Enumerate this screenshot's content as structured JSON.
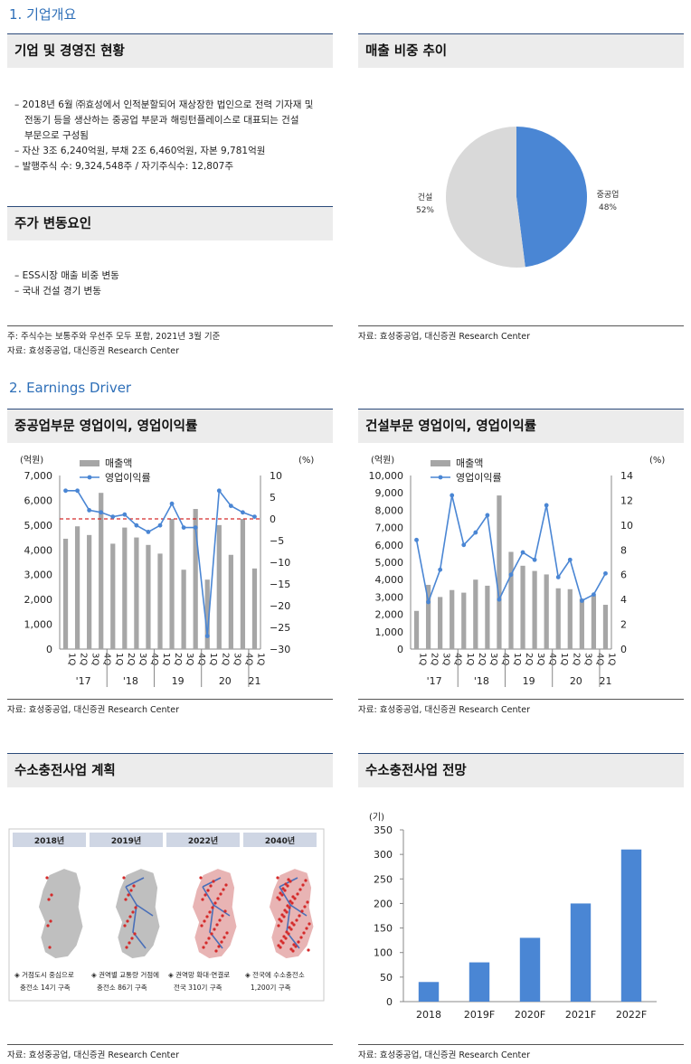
{
  "section1": {
    "title": "1. 기업개요"
  },
  "company": {
    "head": "기업 및 경영진 현황",
    "bullets": [
      "– 2018년 6월 ㈜효성에서 인적분할되어 재상장한 법인으로 전력 기자재 및",
      "전동기 등을 생산하는 중공업 부문과 해링턴플레이스로 대표되는 건설",
      "부문으로 구성됨",
      "– 자산 3조 6,240억원, 부채 2조 6,460억원, 자본 9,781억원",
      "– 발행주식 수: 9,324,548주 / 자기주식수: 12,807주"
    ]
  },
  "stock": {
    "head": "주가 변동요인",
    "bullets": [
      "– ESS시장 매출 비중 변동",
      "– 국내 건설 경기 변동"
    ],
    "note": "주: 주식수는 보통주와 우선주 모두 포함, 2021년 3월 기준",
    "source": "자료: 효성중공업, 대신증권 Research Center"
  },
  "pie": {
    "head": "매출 비중 추이",
    "source": "자료: 효성중공업, 대신증권 Research Center",
    "color_heavy": "#4a86d4",
    "color_const": "#d9d9d9"
  },
  "section2": {
    "title": "2. Earnings Driver"
  },
  "chart1": {
    "head": "중공업부문 영업이익, 영업이익률",
    "source": "자료: 효성중공업, 대신증권 Research Center",
    "unit_left": "(억원)",
    "unit_right": "(%)",
    "legend_bar": "매출액",
    "legend_line": "영업이익률",
    "left_ticks": [
      "7,000",
      "6,000",
      "5,000",
      "4,000",
      "3,000",
      "2,000",
      "1,000",
      "0"
    ],
    "right_ticks": [
      "10",
      "5",
      "0",
      "−5",
      "−10",
      "−15",
      "−20",
      "−25",
      "−30"
    ],
    "q_labels": [
      "1Q",
      "2Q",
      "3Q",
      "4Q",
      "1Q",
      "2Q",
      "3Q",
      "4Q",
      "1Q",
      "2Q",
      "3Q",
      "4Q",
      "1Q",
      "2Q",
      "3Q",
      "4Q",
      "1Q"
    ],
    "years": [
      "'17",
      "'18",
      "19",
      "20",
      "21"
    ]
  },
  "chart2": {
    "head": "건설부문 영업이익, 영업이익률",
    "source": "자료: 효성중공업, 대신증권 Research Center",
    "unit_left": "(억원)",
    "unit_right": "(%)",
    "legend_bar": "매출액",
    "legend_line": "영업이익률",
    "left_ticks": [
      "10,000",
      "9,000",
      "8,000",
      "7,000",
      "6,000",
      "5,000",
      "4,000",
      "3,000",
      "2,000",
      "1,000",
      "0"
    ],
    "right_ticks": [
      "14",
      "12",
      "10",
      "8",
      "6",
      "4",
      "2",
      "0"
    ],
    "q_labels": [
      "1Q",
      "2Q",
      "3Q",
      "4Q",
      "1Q",
      "2Q",
      "3Q",
      "4Q",
      "1Q",
      "2Q",
      "3Q",
      "4Q",
      "1Q",
      "2Q",
      "3Q",
      "4Q",
      "1Q"
    ],
    "years": [
      "'17",
      "'18",
      "19",
      "20",
      "21"
    ]
  },
  "hydrogen_plan": {
    "head": "수소충전사업 계획",
    "source": "자료: 효성중공업, 대신증권 Research Center",
    "years": [
      "2018년",
      "2019년",
      "2022년",
      "2040년"
    ],
    "captions": [
      [
        "◈ 거점도시 중심으로",
        "충전소 14기 구축"
      ],
      [
        "◈ 권역별 교통량 거점에",
        "충전소 86기 구축"
      ],
      [
        "◈ 권역망 확대·연결로",
        "전국 310기 구축"
      ],
      [
        "◈ 전국에 수소충전소",
        "1,200기 구축"
      ]
    ]
  },
  "hydrogen_outlook": {
    "head": "수소충전사업 전망",
    "source": "자료: 효성중공업, 대신증권 Research Center",
    "unit": "(기)",
    "y_ticks": [
      "350",
      "300",
      "250",
      "200",
      "150",
      "100",
      "50",
      "0"
    ]
  },
  "chart_data": [
    {
      "type": "pie",
      "labels": [
        "중공업",
        "건설"
      ],
      "values": [
        48,
        52
      ],
      "value_labels": [
        "48%",
        "52%"
      ]
    },
    {
      "type": "bar",
      "series": [
        {
          "name": "매출액",
          "axis": "left",
          "values": [
            4450,
            4950,
            4600,
            6300,
            4250,
            4900,
            4500,
            4200,
            3850,
            5250,
            3200,
            5650,
            2800,
            5000,
            3800,
            5250,
            3250
          ]
        },
        {
          "name": "영업이익률",
          "axis": "right",
          "kind": "line",
          "values": [
            6.5,
            6.5,
            2.0,
            1.5,
            0.5,
            1.0,
            -1.5,
            -3.0,
            -1.5,
            3.5,
            -2.0,
            -2.0,
            -27.0,
            6.5,
            3.0,
            1.5,
            0.5
          ]
        }
      ],
      "ylim_left": [
        0,
        7000
      ],
      "ylim_right": [
        -30,
        10
      ],
      "reference_line": {
        "value": 5250,
        "axis": "left"
      }
    },
    {
      "type": "bar",
      "series": [
        {
          "name": "매출액",
          "axis": "left",
          "values": [
            2200,
            3700,
            3000,
            3400,
            3250,
            4000,
            3650,
            8850,
            5600,
            4800,
            4500,
            4300,
            3500,
            3450,
            2900,
            3100,
            2550
          ]
        },
        {
          "name": "영업이익률",
          "axis": "right",
          "kind": "line",
          "values": [
            8.8,
            3.8,
            6.4,
            12.4,
            8.4,
            9.4,
            10.8,
            4.0,
            6.0,
            7.8,
            7.2,
            11.6,
            5.8,
            7.2,
            3.9,
            4.4,
            6.1
          ]
        }
      ],
      "ylim_left": [
        0,
        10000
      ],
      "ylim_right": [
        0,
        14
      ]
    },
    {
      "type": "bar",
      "categories": [
        "2018",
        "2019F",
        "2020F",
        "2021F",
        "2022F"
      ],
      "values": [
        40,
        80,
        130,
        200,
        310
      ],
      "ylim": [
        0,
        350
      ]
    }
  ]
}
